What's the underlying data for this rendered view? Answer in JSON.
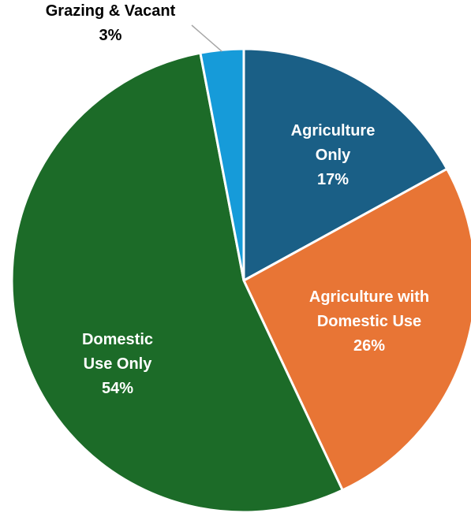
{
  "chart_data": {
    "type": "pie",
    "title": "",
    "slices": [
      {
        "label_lines": [
          "Agriculture",
          "Only"
        ],
        "value": 17,
        "value_label": "17%",
        "color": "#1a5f86",
        "label_color": "#ffffff"
      },
      {
        "label_lines": [
          "Agriculture with",
          "Domestic Use"
        ],
        "value": 26,
        "value_label": "26%",
        "color": "#e87535",
        "label_color": "#ffffff"
      },
      {
        "label_lines": [
          "Domestic",
          "Use Only"
        ],
        "value": 54,
        "value_label": "54%",
        "color": "#1c6b28",
        "label_color": "#ffffff"
      },
      {
        "label_lines": [
          "Grazing & Vacant"
        ],
        "value": 3,
        "value_label": "3%",
        "color": "#169bd9",
        "label_color": "#000000"
      }
    ],
    "start_angle": "12 o'clock",
    "direction": "clockwise",
    "legend": "none"
  }
}
